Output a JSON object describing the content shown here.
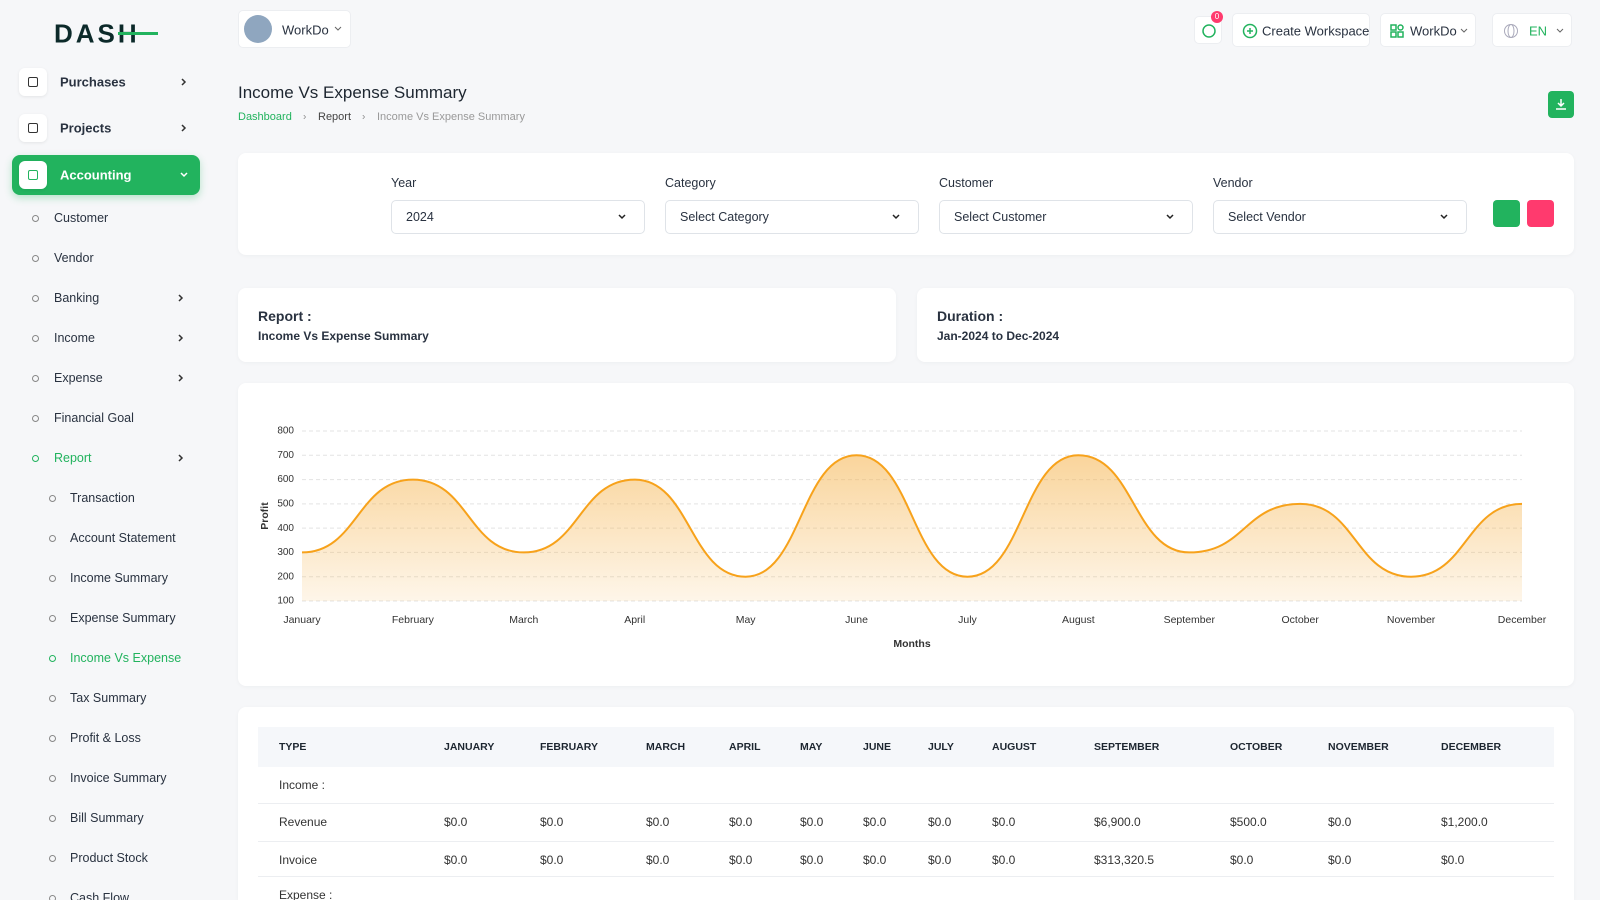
{
  "sidebar": {
    "logo": "DASH",
    "modules": [
      "Purchases",
      "Projects",
      "Accounting"
    ],
    "accounting_menu": [
      "Customer",
      "Vendor",
      "Banking",
      "Income",
      "Expense",
      "Financial Goal",
      "Report"
    ],
    "report_menu": [
      "Transaction",
      "Account Statement",
      "Income Summary",
      "Expense Summary",
      "Income Vs Expense",
      "Tax Summary",
      "Profit & Loss",
      "Invoice Summary",
      "Bill Summary",
      "Product Stock",
      "Cash Flow"
    ]
  },
  "topbar": {
    "workspace": "WorkDo",
    "notifications": "0",
    "create_workspace": "Create Workspace",
    "user": "WorkDo",
    "language": "EN"
  },
  "page": {
    "title": "Income Vs Expense Summary",
    "breadcrumb": [
      "Dashboard",
      "Report",
      "Income Vs Expense Summary"
    ]
  },
  "filters": [
    {
      "label": "Year",
      "value": "2024"
    },
    {
      "label": "Category",
      "value": "Select Category"
    },
    {
      "label": "Customer",
      "value": "Select Customer"
    },
    {
      "label": "Vendor",
      "value": "Select Vendor"
    }
  ],
  "report_info": {
    "report_label": "Report :",
    "report_value": "Income Vs Expense Summary",
    "duration_label": "Duration :",
    "duration_value": "Jan-2024 to Dec-2024"
  },
  "chart_data": {
    "type": "area",
    "categories": [
      "January",
      "February",
      "March",
      "April",
      "May",
      "June",
      "July",
      "August",
      "September",
      "October",
      "November",
      "December"
    ],
    "values": [
      300,
      600,
      300,
      600,
      200,
      700,
      200,
      700,
      300,
      500,
      200,
      500
    ],
    "color": "#f7a21b",
    "x_label": "Months",
    "y_label": "Profit",
    "ylim": [
      100,
      800
    ],
    "yticks": [
      100,
      200,
      300,
      400,
      500,
      600,
      700,
      800
    ],
    "grid": true
  },
  "table": {
    "headers": [
      "TYPE",
      "JANUARY",
      "FEBRUARY",
      "MARCH",
      "APRIL",
      "MAY",
      "JUNE",
      "JULY",
      "AUGUST",
      "SEPTEMBER",
      "OCTOBER",
      "NOVEMBER",
      "DECEMBER"
    ],
    "rows": [
      [
        "Income :"
      ],
      [
        "Revenue",
        "$0.0",
        "$0.0",
        "$0.0",
        "$0.0",
        "$0.0",
        "$0.0",
        "$0.0",
        "$0.0",
        "$6,900.0",
        "$500.0",
        "$0.0",
        "$1,200.0"
      ],
      [
        "Invoice",
        "$0.0",
        "$0.0",
        "$0.0",
        "$0.0",
        "$0.0",
        "$0.0",
        "$0.0",
        "$0.0",
        "$313,320.5",
        "$0.0",
        "$0.0",
        "$0.0"
      ],
      [
        "Expense :"
      ]
    ]
  }
}
